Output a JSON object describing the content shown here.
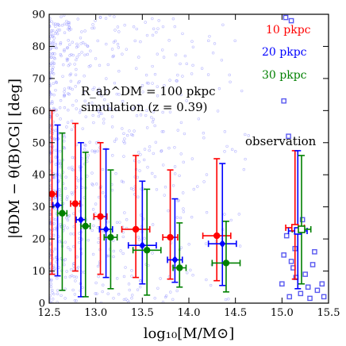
{
  "chart_data": {
    "type": "scatter",
    "xlabel": "log₁₀[M/M⊙]",
    "ylabel": "|θDM − θ(B)CG| [deg]",
    "xlim": [
      12.5,
      15.5
    ],
    "ylim": [
      0,
      90
    ],
    "xticks": [
      "12.5",
      "13.0",
      "13.5",
      "14.0",
      "14.5",
      "15.0",
      "15.5"
    ],
    "yticks": [
      "0",
      "10",
      "20",
      "30",
      "40",
      "50",
      "60",
      "70",
      "80",
      "90"
    ],
    "annotation_line1": "R_ab^DM = 100 pkpc",
    "annotation_line2": "simulation (z = 0.39)",
    "observation_label": "observation",
    "legend_position": "top-right",
    "colors": {
      "s10": "#ff0000",
      "s20": "#0000ff",
      "s30": "#008000",
      "background": "#8080ff"
    },
    "series": [
      {
        "name": "10 pkpc",
        "color": "#ff0000",
        "marker": "circle",
        "points": [
          {
            "x": 12.53,
            "y": 34,
            "xerr": [
              0.05,
              0.05
            ],
            "yerr": [
              25,
              26
            ]
          },
          {
            "x": 12.78,
            "y": 31,
            "xerr": [
              0.05,
              0.05
            ],
            "yerr": [
              21,
              25
            ]
          },
          {
            "x": 13.05,
            "y": 27,
            "xerr": [
              0.07,
              0.07
            ],
            "yerr": [
              18,
              23
            ]
          },
          {
            "x": 13.43,
            "y": 23,
            "xerr": [
              0.15,
              0.15
            ],
            "yerr": [
              15,
              23
            ]
          },
          {
            "x": 13.8,
            "y": 20.5,
            "xerr": [
              0.08,
              0.08
            ],
            "yerr": [
              13,
              21
            ]
          },
          {
            "x": 14.3,
            "y": 21,
            "xerr": [
              0.15,
              0.15
            ],
            "yerr": [
              14,
              24
            ]
          }
        ]
      },
      {
        "name": "20 pkpc",
        "color": "#0000ff",
        "marker": "diamond",
        "points": [
          {
            "x": 12.59,
            "y": 30.5,
            "xerr": [
              0.05,
              0.05
            ],
            "yerr": [
              22,
              25
            ]
          },
          {
            "x": 12.84,
            "y": 26,
            "xerr": [
              0.05,
              0.05
            ],
            "yerr": [
              24,
              24
            ]
          },
          {
            "x": 13.11,
            "y": 23,
            "xerr": [
              0.07,
              0.07
            ],
            "yerr": [
              15,
              25
            ]
          },
          {
            "x": 13.5,
            "y": 18,
            "xerr": [
              0.15,
              0.15
            ],
            "yerr": [
              12,
              20
            ]
          },
          {
            "x": 13.85,
            "y": 13.5,
            "xerr": [
              0.08,
              0.08
            ],
            "yerr": [
              7,
              19
            ]
          },
          {
            "x": 14.36,
            "y": 18.5,
            "xerr": [
              0.15,
              0.15
            ],
            "yerr": [
              13,
              25
            ]
          }
        ]
      },
      {
        "name": "30 pkpc",
        "color": "#008000",
        "marker": "circle",
        "points": [
          {
            "x": 12.64,
            "y": 28,
            "xerr": [
              0.05,
              0.05
            ],
            "yerr": [
              24,
              25
            ]
          },
          {
            "x": 12.89,
            "y": 24,
            "xerr": [
              0.05,
              0.05
            ],
            "yerr": [
              22,
              23
            ]
          },
          {
            "x": 13.16,
            "y": 20.5,
            "xerr": [
              0.07,
              0.07
            ],
            "yerr": [
              16,
              21
            ]
          },
          {
            "x": 13.55,
            "y": 16.5,
            "xerr": [
              0.15,
              0.15
            ],
            "yerr": [
              14,
              19
            ]
          },
          {
            "x": 13.9,
            "y": 11,
            "xerr": [
              0.07,
              0.07
            ],
            "yerr": [
              6,
              14
            ]
          },
          {
            "x": 14.4,
            "y": 12.5,
            "xerr": [
              0.15,
              0.15
            ],
            "yerr": [
              9,
              13
            ]
          }
        ]
      }
    ],
    "observation_series": [
      {
        "name": "10 pkpc",
        "color": "#ff0000",
        "x": 15.14,
        "y": 23.5,
        "xerr": [
          0.1,
          0.1
        ],
        "yerr": [
          16,
          24
        ]
      },
      {
        "name": "20 pkpc",
        "color": "#0000ff",
        "x": 15.17,
        "y": 22.5,
        "xerr": [
          0.1,
          0.1
        ],
        "yerr": [
          18,
          25
        ]
      },
      {
        "name": "30 pkpc",
        "color": "#008000",
        "x": 15.21,
        "y": 23,
        "xerr": [
          0.1,
          0.1
        ],
        "yerr": [
          17,
          23
        ]
      }
    ],
    "observation_points": [
      {
        "x": 15.04,
        "y": 89
      },
      {
        "x": 15.1,
        "y": 88
      },
      {
        "x": 15.02,
        "y": 63
      },
      {
        "x": 15.07,
        "y": 52
      },
      {
        "x": 15.05,
        "y": 21
      },
      {
        "x": 15.22,
        "y": 26
      },
      {
        "x": 15.02,
        "y": 15
      },
      {
        "x": 15.1,
        "y": 13
      },
      {
        "x": 15.35,
        "y": 16
      },
      {
        "x": 15.12,
        "y": 11
      },
      {
        "x": 15.15,
        "y": 8
      },
      {
        "x": 15.0,
        "y": 6
      },
      {
        "x": 15.28,
        "y": 5
      },
      {
        "x": 15.38,
        "y": 4
      },
      {
        "x": 15.43,
        "y": 6
      },
      {
        "x": 15.2,
        "y": 3
      },
      {
        "x": 15.08,
        "y": 2
      },
      {
        "x": 15.3,
        "y": 1.5
      },
      {
        "x": 15.45,
        "y": 2
      },
      {
        "x": 15.14,
        "y": 17
      },
      {
        "x": 15.25,
        "y": 9
      },
      {
        "x": 15.33,
        "y": 12
      }
    ],
    "background_points": 1200
  }
}
